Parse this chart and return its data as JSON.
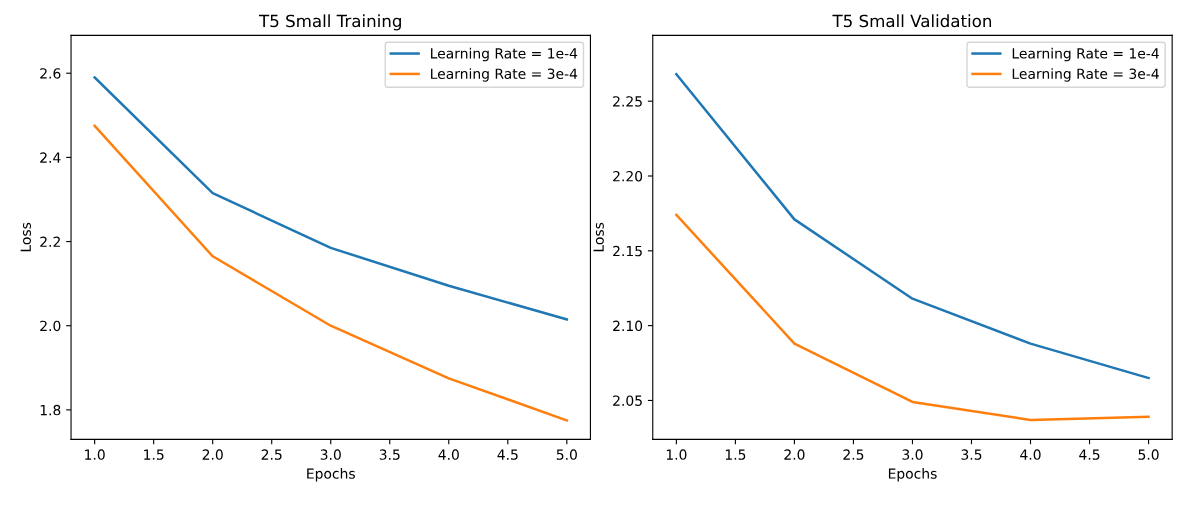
{
  "chart_data": [
    {
      "type": "line",
      "title": "T5 Small Training",
      "xlabel": "Epochs",
      "ylabel": "Loss",
      "x": [
        1,
        2,
        3,
        4,
        5
      ],
      "series": [
        {
          "name": "Learning Rate = 1e-4",
          "color": "#1f77b4",
          "values": [
            2.59,
            2.315,
            2.185,
            2.095,
            2.015
          ]
        },
        {
          "name": "Learning Rate = 3e-4",
          "color": "#ff7f0e",
          "values": [
            2.475,
            2.165,
            2.0,
            1.875,
            1.775
          ]
        }
      ],
      "xlim": [
        0.8,
        5.2
      ],
      "xticks": [
        {
          "value": 1,
          "label": "1.0"
        },
        1.5,
        {
          "value": 2,
          "label": "2.0"
        },
        2.5,
        {
          "value": 3,
          "label": "3.0"
        },
        3.5,
        {
          "value": 4,
          "label": "4.0"
        },
        4.5,
        {
          "value": 5,
          "label": "5.0"
        }
      ],
      "ylim": [
        1.73,
        2.69
      ],
      "yticks": [
        1.8,
        {
          "value": 2.0,
          "label": "2.0"
        },
        2.2,
        2.4,
        2.6
      ],
      "legend": "top right",
      "grid": false
    },
    {
      "type": "line",
      "title": "T5 Small Validation",
      "xlabel": "Epochs",
      "ylabel": "Loss",
      "x": [
        1,
        2,
        3,
        4,
        5
      ],
      "series": [
        {
          "name": "Learning Rate = 1e-4",
          "color": "#1f77b4",
          "values": [
            2.268,
            2.171,
            2.118,
            2.088,
            2.065
          ]
        },
        {
          "name": "Learning Rate = 3e-4",
          "color": "#ff7f0e",
          "values": [
            2.174,
            2.088,
            2.049,
            2.037,
            2.039
          ]
        }
      ],
      "xlim": [
        0.8,
        5.2
      ],
      "xticks": [
        {
          "value": 1,
          "label": "1.0"
        },
        1.5,
        {
          "value": 2,
          "label": "2.0"
        },
        2.5,
        {
          "value": 3,
          "label": "3.0"
        },
        3.5,
        {
          "value": 4,
          "label": "4.0"
        },
        4.5,
        {
          "value": 5,
          "label": "5.0"
        }
      ],
      "ylim": [
        2.024,
        2.294
      ],
      "yticks": [
        2.05,
        {
          "value": 2.1,
          "label": "2.10"
        },
        2.15,
        {
          "value": 2.2,
          "label": "2.20"
        },
        2.25
      ],
      "legend": "top right",
      "grid": false
    }
  ]
}
